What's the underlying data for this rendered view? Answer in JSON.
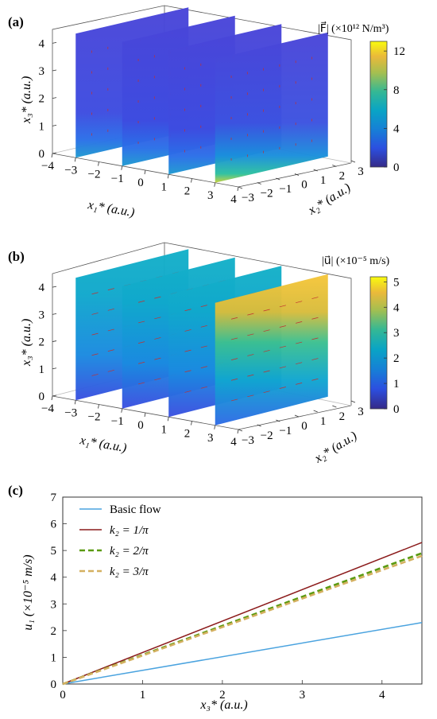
{
  "chart_data": [
    {
      "type": "3d-slice",
      "panel_label": "(a)",
      "colorbar": {
        "label": "|F⃗| (×10¹² N/m³)",
        "ticks": [
          "12",
          "8",
          "4",
          "0"
        ],
        "range": [
          0,
          13
        ],
        "colormap": "parula"
      },
      "axes": {
        "x1": {
          "label": "x₁* (a.u.)",
          "ticks": [
            "−4",
            "−3",
            "−2",
            "−1",
            "0",
            "1",
            "2",
            "3",
            "4"
          ]
        },
        "x2": {
          "label": "x₂* (a.u.)",
          "ticks": [
            "−3",
            "−2",
            "−1",
            "0",
            "1",
            "2",
            "3"
          ]
        },
        "x3": {
          "label": "x₃* (a.u.)",
          "ticks": [
            "0",
            "1",
            "2",
            "3",
            "4"
          ]
        }
      },
      "slice_x1_positions": [
        -3,
        -1,
        1,
        3
      ]
    },
    {
      "type": "3d-slice",
      "panel_label": "(b)",
      "colorbar": {
        "label": "|u⃗| (×10⁻⁵ m/s)",
        "ticks": [
          "5",
          "4",
          "3",
          "2",
          "1",
          "0"
        ],
        "range": [
          0,
          5.2
        ],
        "colormap": "parula"
      },
      "axes": {
        "x1": {
          "label": "x₁* (a.u.)",
          "ticks": [
            "−4",
            "−3",
            "−2",
            "−1",
            "0",
            "1",
            "2",
            "3",
            "4"
          ]
        },
        "x2": {
          "label": "x₂* (a.u.)",
          "ticks": [
            "−3",
            "−2",
            "−1",
            "0",
            "1",
            "2",
            "3"
          ]
        },
        "x3": {
          "label": "x₃* (a.u.)",
          "ticks": [
            "0",
            "1",
            "2",
            "3",
            "4"
          ]
        }
      },
      "slice_x1_positions": [
        -3,
        -1,
        1,
        3
      ]
    },
    {
      "type": "line",
      "panel_label": "(c)",
      "xlabel": "x₃* (a.u.)",
      "ylabel": "u₁ (×10⁻⁵ m/s)",
      "xlim": [
        0,
        4.5
      ],
      "ylim": [
        0,
        7
      ],
      "xticks": [
        "0",
        "1",
        "2",
        "3",
        "4"
      ],
      "yticks": [
        "0",
        "1",
        "2",
        "3",
        "4",
        "5",
        "6",
        "7"
      ],
      "legend": "top-left",
      "series": [
        {
          "name": "Basic flow",
          "color": "#4aa3df",
          "style": "solid",
          "x": [
            0,
            4.5
          ],
          "y": [
            0,
            2.3
          ]
        },
        {
          "name": "k₂ = 1/π",
          "color": "#8b1a1a",
          "style": "solid",
          "x": [
            0,
            4.5
          ],
          "y": [
            0,
            5.3
          ]
        },
        {
          "name": "k₂ = 2/π",
          "color": "#5a9a10",
          "style": "dash",
          "x": [
            0,
            4.5
          ],
          "y": [
            0,
            4.9
          ]
        },
        {
          "name": "k₂ = 3/π",
          "color": "#d4b060",
          "style": "dash",
          "x": [
            0,
            4.5
          ],
          "y": [
            0,
            4.8
          ]
        }
      ]
    }
  ]
}
